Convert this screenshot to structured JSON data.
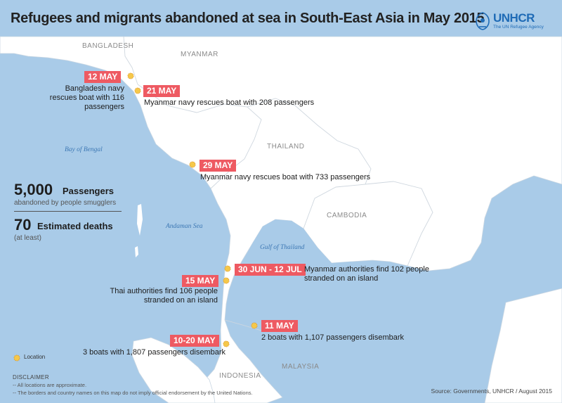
{
  "title": "Refugees and migrants abandoned at sea in South-East Asia in May 2015",
  "logo": {
    "word": "UNHCR",
    "tagline": "The UN Refugee Agency"
  },
  "countries": [
    "BANGLADESH",
    "MYANMAR",
    "THAILAND",
    "CAMBODIA",
    "MALAYSIA",
    "INDONESIA"
  ],
  "seas": [
    "Bay of Bengal",
    "Andaman Sea",
    "Gulf of Thailand"
  ],
  "events": [
    {
      "date": "12 MAY",
      "text": "Bangladesh navy rescues boat with 116 passengers"
    },
    {
      "date": "21 MAY",
      "text": "Myanmar navy rescues boat with 208 passengers"
    },
    {
      "date": "29 MAY",
      "text": "Myanmar navy rescues boat with 733 passengers"
    },
    {
      "date": "30 JUN - 12 JUL",
      "text": "Myanmar authorities find 102 people stranded on an island"
    },
    {
      "date": "15 MAY",
      "text": "Thai authorities find 106 people stranded on an island"
    },
    {
      "date": "11 MAY",
      "text": "2 boats with 1,107 passengers disembark"
    },
    {
      "date": "10-20 MAY",
      "text": "3 boats with 1,807 passengers disembark"
    }
  ],
  "stats": [
    {
      "value": "5,000",
      "label": "Passengers",
      "sub": "abandoned by people smugglers"
    },
    {
      "value": "70",
      "label": "Estimated deaths",
      "sub": "(at least)"
    }
  ],
  "legend": {
    "location": "Location"
  },
  "disclaimer": {
    "heading": "DISCLAIMER",
    "lines": [
      "-- All locations are approximate.",
      "-- The borders and country names on this map do not imply official endorsement by the United Nations."
    ]
  },
  "source": "Source: Governments, UNHCR / August 2015",
  "colors": {
    "sea": "#a9cbe8",
    "land": "#ffffff",
    "tag": "#ee5a62",
    "marker": "#f5c84a",
    "brand": "#1f6bb6"
  }
}
